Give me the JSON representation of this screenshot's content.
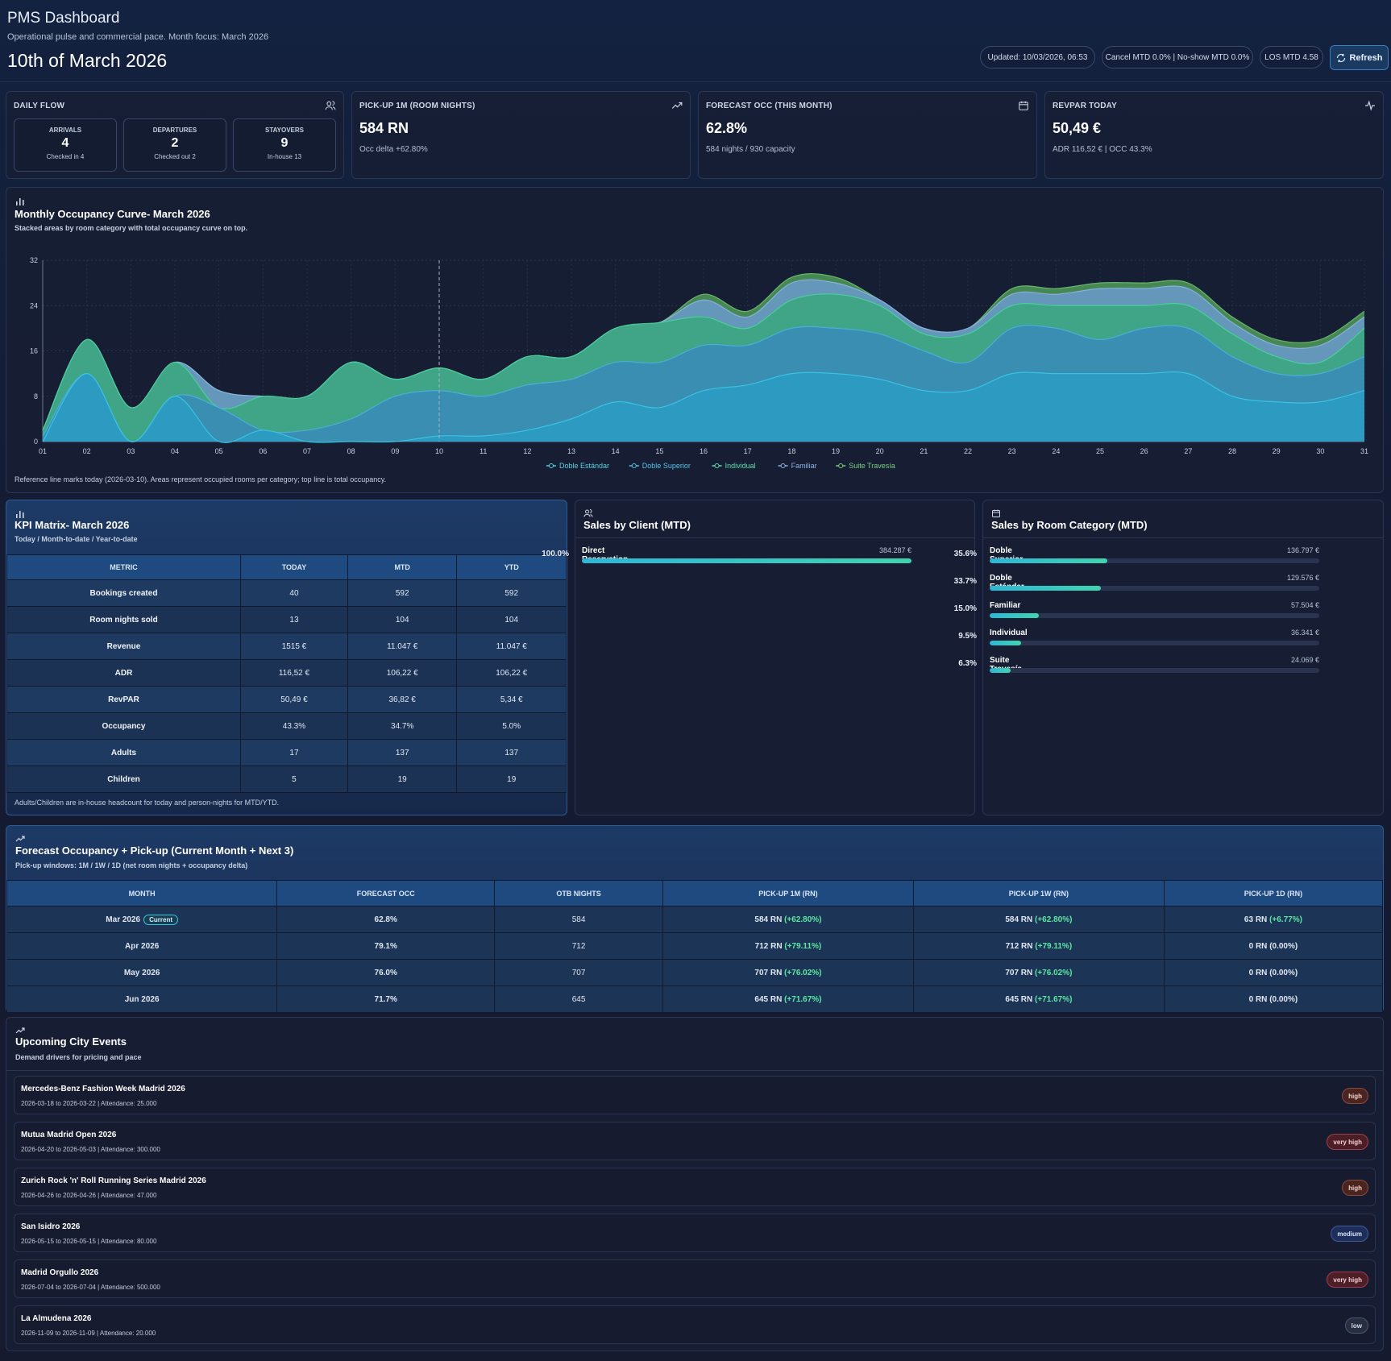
{
  "header": {
    "title": "PMS Dashboard",
    "subtitle": "Operational pulse and commercial pace. Month focus: March 2026",
    "date": "10th of March 2026",
    "pills": {
      "updated": "Updated: 10/03/2026, 06:53",
      "cancel": "Cancel MTD 0.0% | No-show MTD 0.0%",
      "los": "LOS MTD 4.58"
    },
    "refresh_label": "Refresh"
  },
  "daily_flow": {
    "label": "DAILY FLOW",
    "arrivals": {
      "label": "ARRIVALS",
      "value": "4",
      "sub": "Checked in 4"
    },
    "departures": {
      "label": "DEPARTURES",
      "value": "2",
      "sub": "Checked out 2"
    },
    "stayovers": {
      "label": "STAYOVERS",
      "value": "9",
      "sub": "In-house 13"
    }
  },
  "kpis": {
    "pickup": {
      "label": "PICK-UP 1M (ROOM NIGHTS)",
      "value": "584 RN",
      "sub": "Occ delta +62.80%"
    },
    "forecast": {
      "label": "FORECAST OCC (THIS MONTH)",
      "value": "62.8%",
      "sub": "584 nights / 930 capacity"
    },
    "revpar": {
      "label": "REVPAR TODAY",
      "value": "50,49 €",
      "sub": "ADR 116,52 € | OCC 43.3%"
    }
  },
  "occupancy_chart": {
    "title": "Monthly Occupancy Curve- March 2026",
    "subtitle": "Stacked areas by room category with total occupancy curve on top.",
    "footnote": "Reference line marks today (2026-03-10). Areas represent occupied rooms per category; top line is total occupancy."
  },
  "chart_data": {
    "type": "area",
    "stacked": true,
    "x": [
      "01",
      "02",
      "03",
      "04",
      "05",
      "06",
      "07",
      "08",
      "09",
      "10",
      "11",
      "12",
      "13",
      "14",
      "15",
      "16",
      "17",
      "18",
      "19",
      "20",
      "21",
      "22",
      "23",
      "24",
      "25",
      "26",
      "27",
      "28",
      "29",
      "30",
      "31"
    ],
    "ylim": [
      0,
      32
    ],
    "yticks": [
      0,
      8,
      16,
      24,
      32
    ],
    "reference_x": "10",
    "legend_position": "bottom",
    "grid": true,
    "series": [
      {
        "name": "Doble Estándar",
        "color": "#2aa8d0",
        "values": [
          0,
          12,
          0,
          8,
          0,
          2,
          0,
          0,
          0,
          1,
          1,
          2,
          4,
          7,
          6,
          9,
          10,
          12,
          12,
          11,
          9,
          9,
          12,
          12,
          12,
          12,
          12,
          8,
          7,
          7,
          9
        ]
      },
      {
        "name": "Doble Superior",
        "color": "#2aa8d0",
        "values": [
          1,
          0,
          0,
          0,
          6,
          0,
          2,
          4,
          8,
          8,
          7,
          8,
          7,
          7,
          8,
          8,
          7,
          8,
          8,
          8,
          7,
          5,
          8,
          8,
          6,
          8,
          8,
          7,
          5,
          5,
          6
        ]
      },
      {
        "name": "Individual",
        "color": "#3fbf8a",
        "values": [
          1,
          6,
          6,
          6,
          0,
          6,
          6,
          10,
          3,
          4,
          3,
          5,
          4,
          6,
          7,
          5,
          3,
          5,
          6,
          5,
          3,
          5,
          4,
          4,
          6,
          4,
          4,
          4,
          3,
          2,
          5
        ]
      },
      {
        "name": "Familiar",
        "color": "#6a96c4",
        "values": [
          0,
          0,
          0,
          0,
          3,
          0,
          0,
          0,
          0,
          0,
          0,
          0,
          0,
          0,
          0,
          3,
          2,
          3,
          2,
          1,
          1,
          1,
          2,
          2,
          3,
          3,
          3,
          2,
          2,
          3,
          2
        ]
      },
      {
        "name": "Suite Travesía",
        "color": "#5aa060",
        "values": [
          0,
          0,
          0,
          0,
          0,
          0,
          0,
          0,
          0,
          0,
          0,
          0,
          0,
          0,
          0,
          1,
          1,
          1,
          1,
          0,
          0,
          0,
          1,
          1,
          1,
          1,
          1,
          1,
          1,
          1,
          1
        ]
      }
    ]
  },
  "kpi_matrix": {
    "title": "KPI Matrix- March 2026",
    "subtitle": "Today / Month-to-date / Year-to-date",
    "headers": [
      "METRIC",
      "TODAY",
      "MTD",
      "YTD"
    ],
    "rows": [
      [
        "Bookings created",
        "40",
        "592",
        "592"
      ],
      [
        "Room nights sold",
        "13",
        "104",
        "104"
      ],
      [
        "Revenue",
        "1515 €",
        "11.047 €",
        "11.047 €"
      ],
      [
        "ADR",
        "116,52 €",
        "106,22 €",
        "106,22 €"
      ],
      [
        "RevPAR",
        "50,49 €",
        "36,82 €",
        "5,34 €"
      ],
      [
        "Occupancy",
        "43.3%",
        "34.7%",
        "5.0%"
      ],
      [
        "Adults",
        "17",
        "137",
        "137"
      ],
      [
        "Children",
        "5",
        "19",
        "19"
      ]
    ],
    "footnote": "Adults/Children are in-house headcount for today and person-nights for MTD/YTD."
  },
  "sales_client": {
    "title": "Sales by Client (MTD)",
    "items": [
      {
        "name": "Direct Reservation",
        "value": "384.287 €",
        "pct": "100.0%",
        "fraction": 1.0
      }
    ]
  },
  "sales_category": {
    "title": "Sales by Room Category (MTD)",
    "items": [
      {
        "name": "Doble Superior",
        "value": "136.797 €",
        "pct": "35.6%",
        "fraction": 0.356
      },
      {
        "name": "Doble Estándar",
        "value": "129.576 €",
        "pct": "33.7%",
        "fraction": 0.337
      },
      {
        "name": "Familiar",
        "value": "57.504 €",
        "pct": "15.0%",
        "fraction": 0.15
      },
      {
        "name": "Individual",
        "value": "36.341 €",
        "pct": "9.5%",
        "fraction": 0.095
      },
      {
        "name": "Suite Travesía",
        "value": "24.069 €",
        "pct": "6.3%",
        "fraction": 0.063
      }
    ]
  },
  "forecast": {
    "title": "Forecast Occupancy + Pick-up (Current Month + Next 3)",
    "subtitle": "Pick-up windows: 1M / 1W / 1D (net room nights + occupancy delta)",
    "headers": [
      "MONTH",
      "FORECAST OCC",
      "OTB NIGHTS",
      "PICK-UP 1M (RN)",
      "PICK-UP 1W (RN)",
      "PICK-UP 1D (RN)"
    ],
    "current_badge": "Current",
    "rows": [
      {
        "month": "Mar 2026",
        "occ": "62.8%",
        "otb": "584",
        "p1m": "584 RN",
        "p1m_d": "(+62.80%)",
        "p1w": "584 RN",
        "p1w_d": "(+62.80%)",
        "p1d": "63 RN",
        "p1d_d": "(+6.77%)"
      },
      {
        "month": "Apr 2026",
        "occ": "79.1%",
        "otb": "712",
        "p1m": "712 RN",
        "p1m_d": "(+79.11%)",
        "p1w": "712 RN",
        "p1w_d": "(+79.11%)",
        "p1d": "0 RN",
        "p1d_d": "(0.00%)"
      },
      {
        "month": "May 2026",
        "occ": "76.0%",
        "otb": "707",
        "p1m": "707 RN",
        "p1m_d": "(+76.02%)",
        "p1w": "707 RN",
        "p1w_d": "(+76.02%)",
        "p1d": "0 RN",
        "p1d_d": "(0.00%)"
      },
      {
        "month": "Jun 2026",
        "occ": "71.7%",
        "otb": "645",
        "p1m": "645 RN",
        "p1m_d": "(+71.67%)",
        "p1w": "645 RN",
        "p1w_d": "(+71.67%)",
        "p1d": "0 RN",
        "p1d_d": "(0.00%)"
      }
    ]
  },
  "events": {
    "title": "Upcoming City Events",
    "subtitle": "Demand drivers for pricing and pace",
    "items": [
      {
        "name": "Mercedes-Benz Fashion Week Madrid 2026",
        "meta": "2026-03-18 to 2026-03-22 | Attendance: 25.000",
        "level": "high"
      },
      {
        "name": "Mutua Madrid Open 2026",
        "meta": "2026-04-20 to 2026-05-03 | Attendance: 300.000",
        "level": "very high"
      },
      {
        "name": "Zurich Rock 'n' Roll Running Series Madrid 2026",
        "meta": "2026-04-26 to 2026-04-26 | Attendance: 47.000",
        "level": "high"
      },
      {
        "name": "San Isidro 2026",
        "meta": "2026-05-15 to 2026-05-15 | Attendance: 80.000",
        "level": "medium"
      },
      {
        "name": "Madrid Orgullo 2026",
        "meta": "2026-07-04 to 2026-07-04 | Attendance: 500.000",
        "level": "very high"
      },
      {
        "name": "La Almudena 2026",
        "meta": "2026-11-09 to 2026-11-09 | Attendance: 20.000",
        "level": "low"
      }
    ]
  }
}
